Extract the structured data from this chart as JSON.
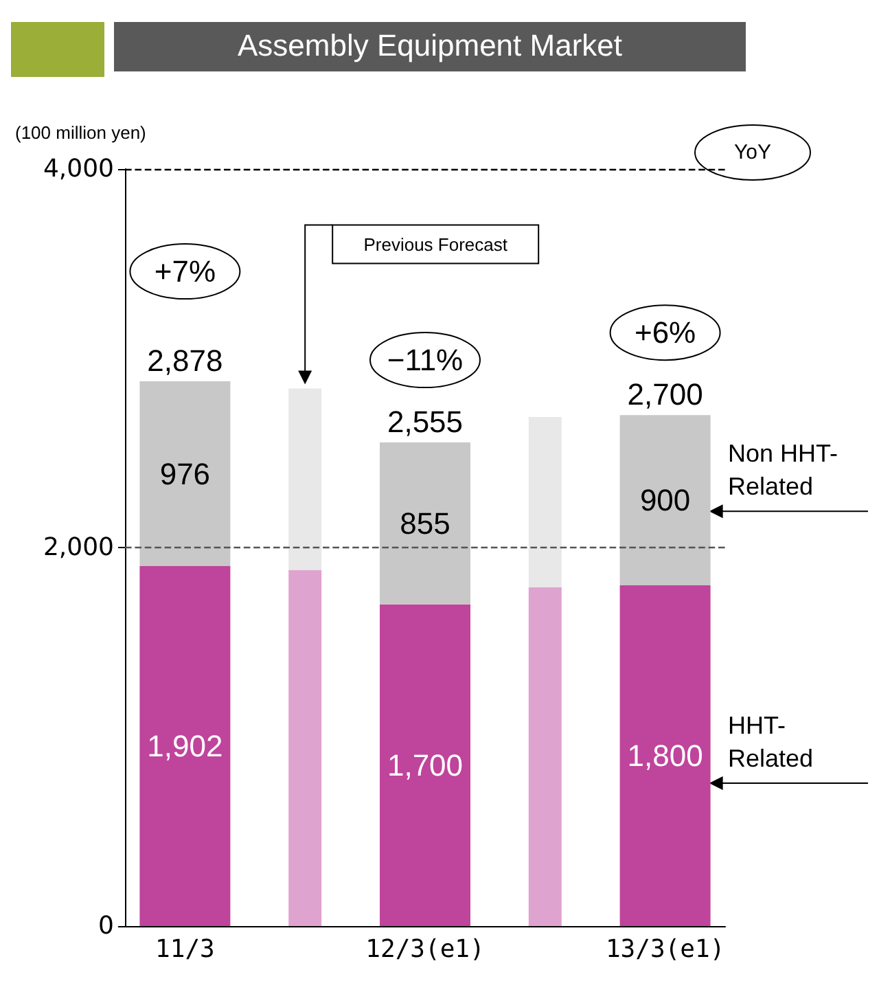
{
  "chart_data": {
    "type": "bar",
    "title": "Assembly Equipment Market",
    "ylabel": "(100 million yen)",
    "stacked": true,
    "categories": [
      "11/3",
      null,
      "12/3(e1)",
      null,
      "13/3(e1)"
    ],
    "series": [
      {
        "color": "#dfa3cf",
        "values": [
          null,
          1880,
          null,
          1790,
          null
        ]
      },
      {
        "color": "#e8e8e8",
        "values": [
          null,
          960,
          null,
          900,
          null
        ]
      },
      {
        "name": "HHT-Related",
        "color": "#bf449c",
        "values": [
          1902,
          null,
          1700,
          null,
          1800
        ],
        "value_labels": [
          "1,902",
          null,
          "1,700",
          null,
          "1,800"
        ]
      },
      {
        "name": "Non HHT-Related",
        "color": "#c8c8c8",
        "values": [
          976,
          null,
          855,
          null,
          900
        ],
        "value_labels": [
          "976",
          null,
          "855",
          null,
          "900"
        ]
      }
    ],
    "totals": [
      "2,878",
      null,
      "2,555",
      null,
      "2,700"
    ],
    "ylim": [
      0,
      4000
    ],
    "yticks": [
      0,
      {
        "value": 2000,
        "label": "2,000"
      },
      {
        "value": 4000,
        "label": "4,000"
      }
    ],
    "ref_lines": [
      {
        "axis": "y",
        "value": 4000,
        "color": "#000000",
        "line_style": "dashed"
      },
      {
        "axis": "y",
        "value": 2000,
        "color": "#555555",
        "line_style": "dashed"
      }
    ],
    "annotations": [
      "YoY",
      "+7%",
      "−11%",
      "+6%",
      "Previous Forecast"
    ],
    "legend": false,
    "grid": false
  }
}
